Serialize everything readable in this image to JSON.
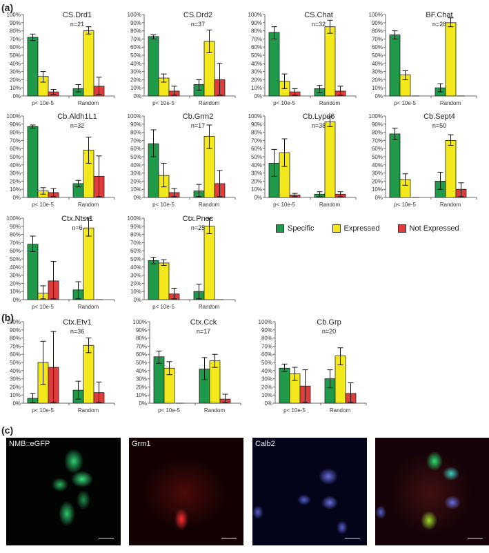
{
  "panels": {
    "a": "(a)",
    "b": "(b)",
    "c": "(c)"
  },
  "legend": [
    {
      "label": "Specific",
      "color": "#1f9a4a"
    },
    {
      "label": "Expressed",
      "color": "#f2e81c"
    },
    {
      "label": "Not Expressed",
      "color": "#e03c3c"
    }
  ],
  "chart_data": [
    {
      "type": "bar",
      "title": "CS.Drd1",
      "subtitle": "n=21",
      "categories": [
        "p< 10e-5",
        "Random"
      ],
      "ylim": [
        0,
        100
      ],
      "yticks": [
        "0%",
        "10%",
        "20%",
        "30%",
        "40%",
        "50%",
        "60%",
        "70%",
        "80%",
        "90%",
        "100%"
      ],
      "series": [
        {
          "name": "Specific",
          "values": [
            72,
            9
          ],
          "err": [
            [
              68,
              76
            ],
            [
              5,
              14
            ]
          ]
        },
        {
          "name": "Expressed",
          "values": [
            24,
            80
          ],
          "err": [
            [
              17,
              30
            ],
            [
              76,
              85
            ]
          ]
        },
        {
          "name": "Not Expressed",
          "values": [
            5,
            12
          ],
          "err": [
            [
              2,
              8
            ],
            [
              2,
              23
            ]
          ]
        }
      ]
    },
    {
      "type": "bar",
      "title": "CS.Drd2",
      "subtitle": "n=37",
      "categories": [
        "p< 10e-5",
        "Random"
      ],
      "ylim": [
        0,
        100
      ],
      "series": [
        {
          "name": "Specific",
          "values": [
            73,
            14
          ],
          "err": [
            [
              70,
              75
            ],
            [
              7,
              20
            ]
          ]
        },
        {
          "name": "Expressed",
          "values": [
            22,
            67
          ],
          "err": [
            [
              17,
              27
            ],
            [
              53,
              81
            ]
          ]
        },
        {
          "name": "Not Expressed",
          "values": [
            6,
            20
          ],
          "err": [
            [
              1,
              12
            ],
            [
              1,
              40
            ]
          ]
        }
      ]
    },
    {
      "type": "bar",
      "title": "CS.Chat",
      "subtitle": "n=32",
      "categories": [
        "p< 10e-5",
        "Random"
      ],
      "ylim": [
        0,
        100
      ],
      "series": [
        {
          "name": "Specific",
          "values": [
            78,
            9
          ],
          "err": [
            [
              70,
              85
            ],
            [
              4,
              13
            ]
          ]
        },
        {
          "name": "Expressed",
          "values": [
            18,
            85
          ],
          "err": [
            [
              9,
              27
            ],
            [
              77,
              93
            ]
          ]
        },
        {
          "name": "Not Expressed",
          "values": [
            5,
            6
          ],
          "err": [
            [
              1,
              9
            ],
            [
              1,
              12
            ]
          ]
        }
      ]
    },
    {
      "type": "bar",
      "title": "BF.Chat",
      "subtitle": "n=28",
      "categories": [
        "p< 10e-5",
        "Random"
      ],
      "ylim": [
        0,
        100
      ],
      "series": [
        {
          "name": "Specific",
          "values": [
            75,
            10
          ],
          "err": [
            [
              70,
              80
            ],
            [
              5,
              15
            ]
          ]
        },
        {
          "name": "Expressed",
          "values": [
            26,
            90
          ],
          "err": [
            [
              20,
              31
            ],
            [
              85,
              96
            ]
          ]
        },
        {
          "name": "Not Expressed",
          "values": [
            0,
            0
          ],
          "err": [
            [
              0,
              0
            ],
            [
              0,
              0
            ]
          ]
        }
      ]
    },
    {
      "type": "bar",
      "title": "Cb.Aldh1L1",
      "subtitle": "n=32",
      "categories": [
        "p< 10e-5",
        "Random"
      ],
      "ylim": [
        0,
        100
      ],
      "series": [
        {
          "name": "Specific",
          "values": [
            87,
            17
          ],
          "err": [
            [
              85,
              89
            ],
            [
              13,
              21
            ]
          ]
        },
        {
          "name": "Expressed",
          "values": [
            8,
            58
          ],
          "err": [
            [
              4,
              12
            ],
            [
              42,
              74
            ]
          ]
        },
        {
          "name": "Not Expressed",
          "values": [
            6,
            26
          ],
          "err": [
            [
              1,
              11
            ],
            [
              1,
              51
            ]
          ]
        }
      ]
    },
    {
      "type": "bar",
      "title": "Cb.Grm2",
      "subtitle": "n=17",
      "categories": [
        "p< 10e-5",
        "Random"
      ],
      "ylim": [
        0,
        100
      ],
      "series": [
        {
          "name": "Specific",
          "values": [
            66,
            8
          ],
          "err": [
            [
              50,
              83
            ],
            [
              1,
              16
            ]
          ]
        },
        {
          "name": "Expressed",
          "values": [
            27,
            75
          ],
          "err": [
            [
              13,
              42
            ],
            [
              60,
              89
            ]
          ]
        },
        {
          "name": "Not Expressed",
          "values": [
            6,
            17
          ],
          "err": [
            [
              1,
              11
            ],
            [
              1,
              33
            ]
          ]
        }
      ]
    },
    {
      "type": "bar",
      "title": "Cb.Lypd6",
      "subtitle": "n=38",
      "categories": [
        "p< 10e-5",
        "Random"
      ],
      "ylim": [
        0,
        100
      ],
      "series": [
        {
          "name": "Specific",
          "values": [
            42,
            4
          ],
          "err": [
            [
              26,
              59
            ],
            [
              1,
              7
            ]
          ]
        },
        {
          "name": "Expressed",
          "values": [
            55,
            93
          ],
          "err": [
            [
              38,
              72
            ],
            [
              87,
              99
            ]
          ]
        },
        {
          "name": "Not Expressed",
          "values": [
            3,
            4
          ],
          "err": [
            [
              1,
              5
            ],
            [
              1,
              7
            ]
          ]
        }
      ]
    },
    {
      "type": "bar",
      "title": "Cb.Sept4",
      "subtitle": "n=50",
      "categories": [
        "p< 10e-5",
        "Random"
      ],
      "ylim": [
        0,
        100
      ],
      "series": [
        {
          "name": "Specific",
          "values": [
            78,
            20
          ],
          "err": [
            [
              71,
              85
            ],
            [
              10,
              31
            ]
          ]
        },
        {
          "name": "Expressed",
          "values": [
            22,
            70
          ],
          "err": [
            [
              15,
              29
            ],
            [
              64,
              77
            ]
          ]
        },
        {
          "name": "Not Expressed",
          "values": [
            0,
            10
          ],
          "err": [
            [
              0,
              0
            ],
            [
              1,
              18
            ]
          ]
        }
      ]
    },
    {
      "type": "bar",
      "title": "Ctx.Ntsr1",
      "subtitle": "n=6",
      "categories": [
        "p< 10e-5",
        "Random"
      ],
      "ylim": [
        0,
        100
      ],
      "series": [
        {
          "name": "Specific",
          "values": [
            68,
            12
          ],
          "err": [
            [
              59,
              78
            ],
            [
              1,
              22
            ]
          ]
        },
        {
          "name": "Expressed",
          "values": [
            8,
            88
          ],
          "err": [
            [
              1,
              17
            ],
            [
              78,
              100
            ]
          ]
        },
        {
          "name": "Not Expressed",
          "values": [
            23,
            0
          ],
          "err": [
            [
              1,
              47
            ],
            [
              0,
              0
            ]
          ]
        }
      ]
    },
    {
      "type": "bar",
      "title": "Ctx.Pnoc",
      "subtitle": "n=25",
      "categories": [
        "p< 10e-5",
        "Random"
      ],
      "ylim": [
        0,
        100
      ],
      "series": [
        {
          "name": "Specific",
          "values": [
            48,
            10
          ],
          "err": [
            [
              44,
              52
            ],
            [
              1,
              19
            ]
          ]
        },
        {
          "name": "Expressed",
          "values": [
            45,
            90
          ],
          "err": [
            [
              42,
              49
            ],
            [
              81,
              100
            ]
          ]
        },
        {
          "name": "Not Expressed",
          "values": [
            7,
            0
          ],
          "err": [
            [
              1,
              14
            ],
            [
              0,
              0
            ]
          ]
        }
      ]
    },
    {
      "type": "bar",
      "title": "Ctx.Etv1",
      "subtitle": "n=36",
      "categories": [
        "p< 10e-5",
        "Random"
      ],
      "ylim": [
        0,
        100
      ],
      "series": [
        {
          "name": "Specific",
          "values": [
            6,
            16
          ],
          "err": [
            [
              1,
              12
            ],
            [
              5,
              27
            ]
          ]
        },
        {
          "name": "Expressed",
          "values": [
            50,
            71
          ],
          "err": [
            [
              23,
              76
            ],
            [
              62,
              80
            ]
          ]
        },
        {
          "name": "Not Expressed",
          "values": [
            44,
            13
          ],
          "err": [
            [
              1,
              88
            ],
            [
              1,
              26
            ]
          ]
        }
      ]
    },
    {
      "type": "bar",
      "title": "Ctx.Cck",
      "subtitle": "n=17",
      "categories": [
        "p< 10e-5",
        "Random"
      ],
      "ylim": [
        0,
        100
      ],
      "series": [
        {
          "name": "Specific",
          "values": [
            57,
            42
          ],
          "err": [
            [
              49,
              64
            ],
            [
              29,
              56
            ]
          ]
        },
        {
          "name": "Expressed",
          "values": [
            43,
            52
          ],
          "err": [
            [
              35,
              51
            ],
            [
              44,
              60
            ]
          ]
        },
        {
          "name": "Not Expressed",
          "values": [
            0,
            5
          ],
          "err": [
            [
              0,
              0
            ],
            [
              1,
              11
            ]
          ]
        }
      ]
    },
    {
      "type": "bar",
      "title": "Cb.Grp",
      "subtitle": "n=20",
      "categories": [
        "p< 10e-5",
        "Random"
      ],
      "ylim": [
        0,
        100
      ],
      "series": [
        {
          "name": "Specific",
          "values": [
            43,
            30
          ],
          "err": [
            [
              39,
              48
            ],
            [
              19,
              41
            ]
          ]
        },
        {
          "name": "Expressed",
          "values": [
            36,
            58
          ],
          "err": [
            [
              28,
              44
            ],
            [
              47,
              68
            ]
          ]
        },
        {
          "name": "Not Expressed",
          "values": [
            21,
            12
          ],
          "err": [
            [
              1,
              41
            ],
            [
              1,
              25
            ]
          ]
        }
      ]
    }
  ],
  "micrographs": [
    {
      "label": "NMB::eGFP",
      "channel": "green"
    },
    {
      "label": "Grm1",
      "channel": "red"
    },
    {
      "label": "Calb2",
      "channel": "blue"
    },
    {
      "label": "",
      "channel": "merge"
    }
  ]
}
